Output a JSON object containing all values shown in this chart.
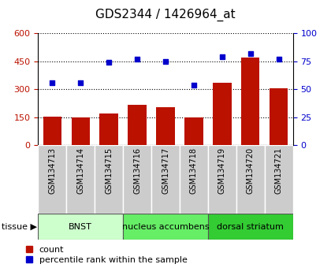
{
  "title": "GDS2344 / 1426964_at",
  "samples": [
    "GSM134713",
    "GSM134714",
    "GSM134715",
    "GSM134716",
    "GSM134717",
    "GSM134718",
    "GSM134719",
    "GSM134720",
    "GSM134721"
  ],
  "counts": [
    155,
    150,
    170,
    215,
    205,
    148,
    335,
    470,
    305
  ],
  "percentiles": [
    56,
    56,
    74,
    77,
    75,
    54,
    79,
    82,
    77
  ],
  "ylim_left": [
    0,
    600
  ],
  "ylim_right": [
    0,
    100
  ],
  "yticks_left": [
    0,
    150,
    300,
    450,
    600
  ],
  "yticks_right": [
    0,
    25,
    50,
    75,
    100
  ],
  "bar_color": "#bb1100",
  "dot_color": "#0000cc",
  "tissue_groups": [
    {
      "label": "BNST",
      "start": 0,
      "end": 3,
      "color": "#ccffcc"
    },
    {
      "label": "nucleus accumbens",
      "start": 3,
      "end": 6,
      "color": "#66ee66"
    },
    {
      "label": "dorsal striatum",
      "start": 6,
      "end": 9,
      "color": "#33cc33"
    }
  ],
  "tissue_label": "tissue",
  "legend_count_label": "count",
  "legend_pct_label": "percentile rank within the sample",
  "sample_bg_color": "#cccccc",
  "grid_linestyle": "dotted",
  "title_fontsize": 11,
  "tick_fontsize": 8,
  "sample_fontsize": 7,
  "tissue_fontsize": 8,
  "legend_fontsize": 8
}
